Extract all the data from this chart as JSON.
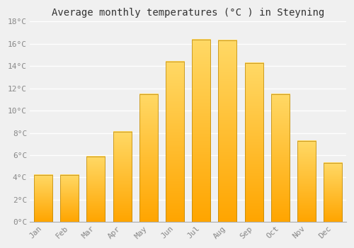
{
  "months": [
    "Jan",
    "Feb",
    "Mar",
    "Apr",
    "May",
    "Jun",
    "Jul",
    "Aug",
    "Sep",
    "Oct",
    "Nov",
    "Dec"
  ],
  "temperatures": [
    4.2,
    4.2,
    5.9,
    8.1,
    11.5,
    14.4,
    16.4,
    16.3,
    14.3,
    11.5,
    7.3,
    5.3
  ],
  "bar_color_top": "#FFD966",
  "bar_color_bottom": "#FFA500",
  "title": "Average monthly temperatures (°C ) in Steyning",
  "ylim": [
    0,
    18
  ],
  "yticks": [
    0,
    2,
    4,
    6,
    8,
    10,
    12,
    14,
    16,
    18
  ],
  "ytick_labels": [
    "0°C",
    "2°C",
    "4°C",
    "6°C",
    "8°C",
    "10°C",
    "12°C",
    "14°C",
    "16°C",
    "18°C"
  ],
  "background_color": "#f0f0f0",
  "grid_color": "#ffffff",
  "bar_edge_color": "#b8860b",
  "title_fontsize": 10,
  "tick_fontsize": 8,
  "tick_color": "#888888",
  "font_family": "monospace",
  "bar_width": 0.7
}
